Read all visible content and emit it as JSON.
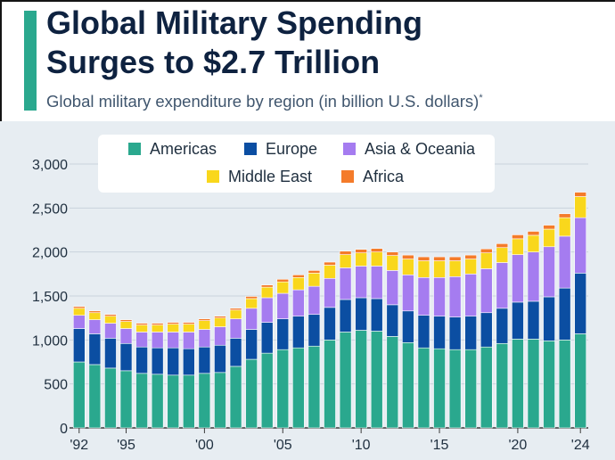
{
  "title_line1": "Global Military Spending",
  "title_line2": "Surges to $2.7 Trillion",
  "subtitle": "Global military expenditure by region (in billion U.S. dollars)",
  "subtitle_marker": "*",
  "chart_data": {
    "type": "bar",
    "stacked": true,
    "x": [
      1992,
      1993,
      1994,
      1995,
      1996,
      1997,
      1998,
      1999,
      2000,
      2001,
      2002,
      2003,
      2004,
      2005,
      2006,
      2007,
      2008,
      2009,
      2010,
      2011,
      2012,
      2013,
      2014,
      2015,
      2016,
      2017,
      2018,
      2019,
      2020,
      2021,
      2022,
      2023,
      2024
    ],
    "x_tick_labels": [
      "'92",
      "'95",
      "'00",
      "'05",
      "'10",
      "'15",
      "'20",
      "'24"
    ],
    "x_tick_years": [
      1992,
      1995,
      2000,
      2005,
      2010,
      2015,
      2020,
      2024
    ],
    "y_ticks": [
      0,
      500,
      1000,
      1500,
      2000,
      2500,
      3000
    ],
    "y_tick_labels": [
      "0",
      "500",
      "1,000",
      "1,500",
      "2,000",
      "2,500",
      "3,000"
    ],
    "ylim": [
      0,
      3000
    ],
    "grid": true,
    "legend_position": "top",
    "series": [
      {
        "name": "Americas",
        "color": "#2aa88e",
        "values": [
          750,
          720,
          680,
          650,
          620,
          610,
          600,
          600,
          620,
          630,
          700,
          780,
          850,
          890,
          910,
          930,
          1000,
          1090,
          1110,
          1100,
          1040,
          970,
          910,
          900,
          890,
          890,
          920,
          960,
          1010,
          1010,
          990,
          1000,
          1070
        ]
      },
      {
        "name": "Europe",
        "color": "#0b4ea2",
        "values": [
          380,
          350,
          340,
          310,
          300,
          300,
          310,
          300,
          300,
          310,
          320,
          340,
          350,
          350,
          360,
          360,
          370,
          370,
          370,
          370,
          360,
          360,
          370,
          370,
          370,
          380,
          390,
          400,
          420,
          430,
          500,
          590,
          690
        ]
      },
      {
        "name": "Asia & Oceania",
        "color": "#a57cf0",
        "values": [
          150,
          160,
          170,
          170,
          170,
          180,
          180,
          190,
          200,
          210,
          220,
          240,
          280,
          290,
          300,
          320,
          330,
          360,
          360,
          370,
          390,
          410,
          430,
          440,
          460,
          480,
          500,
          520,
          540,
          560,
          570,
          590,
          630
        ]
      },
      {
        "name": "Middle East",
        "color": "#f9d71c",
        "values": [
          80,
          80,
          80,
          80,
          80,
          80,
          90,
          90,
          100,
          100,
          100,
          110,
          120,
          130,
          140,
          150,
          150,
          150,
          150,
          160,
          170,
          180,
          190,
          190,
          180,
          170,
          180,
          170,
          180,
          190,
          200,
          210,
          240
        ]
      },
      {
        "name": "Africa",
        "color": "#f47b2a",
        "values": [
          20,
          20,
          20,
          20,
          20,
          20,
          20,
          20,
          20,
          20,
          20,
          25,
          25,
          30,
          30,
          30,
          35,
          40,
          40,
          40,
          40,
          45,
          45,
          45,
          45,
          45,
          45,
          45,
          45,
          45,
          45,
          45,
          50
        ]
      }
    ]
  }
}
